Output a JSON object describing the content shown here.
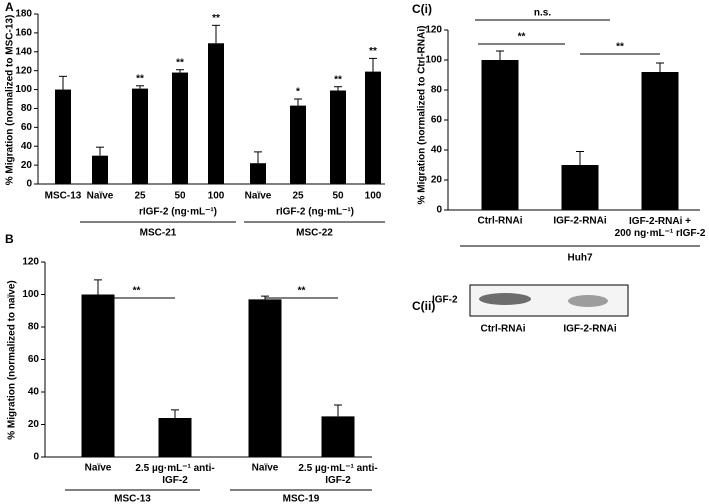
{
  "chart_data": [
    {
      "type": "bar",
      "panel": "A",
      "ylabel": "% Migration (normalized to MSC-13)",
      "categories": [
        "MSC-13",
        "Naïve",
        "25",
        "50",
        "100",
        "Naïve",
        "25",
        "50",
        "100"
      ],
      "values": [
        100,
        30,
        101,
        118,
        149,
        22,
        83,
        99,
        119
      ],
      "errors": [
        14,
        9,
        3,
        3,
        19,
        12,
        7,
        4,
        14
      ],
      "significance": [
        null,
        null,
        "**",
        "**",
        "**",
        null,
        "*",
        "**",
        "**"
      ],
      "group_labels": [
        "rIGF-2 (ng·mL⁻¹)",
        "rIGF-2 (ng·mL⁻¹)"
      ],
      "groups": [
        "MSC-21",
        "MSC-22"
      ],
      "color": "#000000",
      "ylim": [
        0,
        180
      ],
      "yticks": [
        0,
        20,
        40,
        60,
        80,
        100,
        120,
        140,
        160,
        180
      ]
    },
    {
      "type": "bar",
      "panel": "B",
      "ylabel": "% Migration (normalized to naïve)",
      "categories": [
        "Naïve",
        "2.5 µg·mL⁻¹ anti-\nIGF-2",
        "Naïve",
        "2.5 µg·mL⁻¹ anti-\nIGF-2"
      ],
      "values": [
        100,
        24,
        97,
        25
      ],
      "errors": [
        9,
        5,
        2,
        7
      ],
      "annotations": [
        "**",
        "**"
      ],
      "groups": [
        "MSC-13",
        "MSC-19"
      ],
      "color": "#000000",
      "ylim": [
        0,
        120
      ],
      "yticks": [
        0,
        20,
        40,
        60,
        80,
        100,
        120
      ]
    },
    {
      "type": "bar",
      "panel": "C(i)",
      "ylabel": "% Migration (normalized to Ctrl-RNAi)",
      "categories": [
        "Ctrl-RNAi",
        "IGF-2-RNAi",
        "IGF-2-RNAi +\n200 ng·mL⁻¹ rIGF-2"
      ],
      "values": [
        100,
        30,
        92
      ],
      "errors": [
        6,
        9,
        6
      ],
      "annotations": [
        "n.s.",
        "**",
        "**"
      ],
      "groups": [
        "Huh7"
      ],
      "color": "#000000",
      "ylim": [
        0,
        120
      ],
      "yticks": [
        0,
        20,
        40,
        60,
        80,
        100,
        120
      ]
    }
  ],
  "blot": {
    "panel": "C(ii)",
    "label": "IGF-2",
    "lanes": [
      "Ctrl-RNAi",
      "IGF-2-RNAi"
    ]
  }
}
